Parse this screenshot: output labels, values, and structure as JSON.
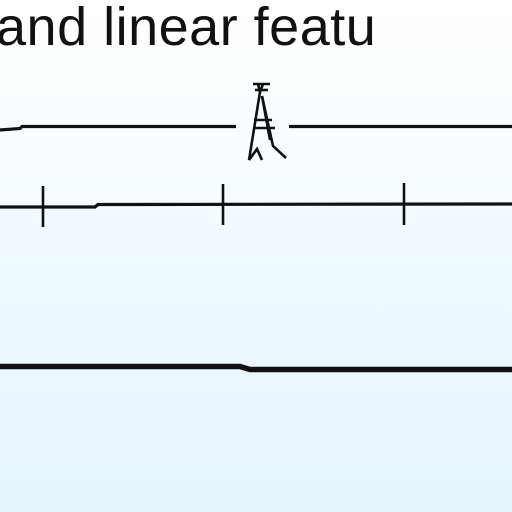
{
  "heading": {
    "text": "and linear featu"
  },
  "colors": {
    "ink": "#111111",
    "background_top": "#ffffff",
    "background_bottom": "#e3f4fb"
  },
  "symbols": [
    {
      "kind": "line-with-tower-symbol",
      "icon": "transmission-tower-icon"
    },
    {
      "kind": "line-with-tick-marks",
      "tick_count": 3
    },
    {
      "kind": "heavy-solid-line"
    }
  ]
}
